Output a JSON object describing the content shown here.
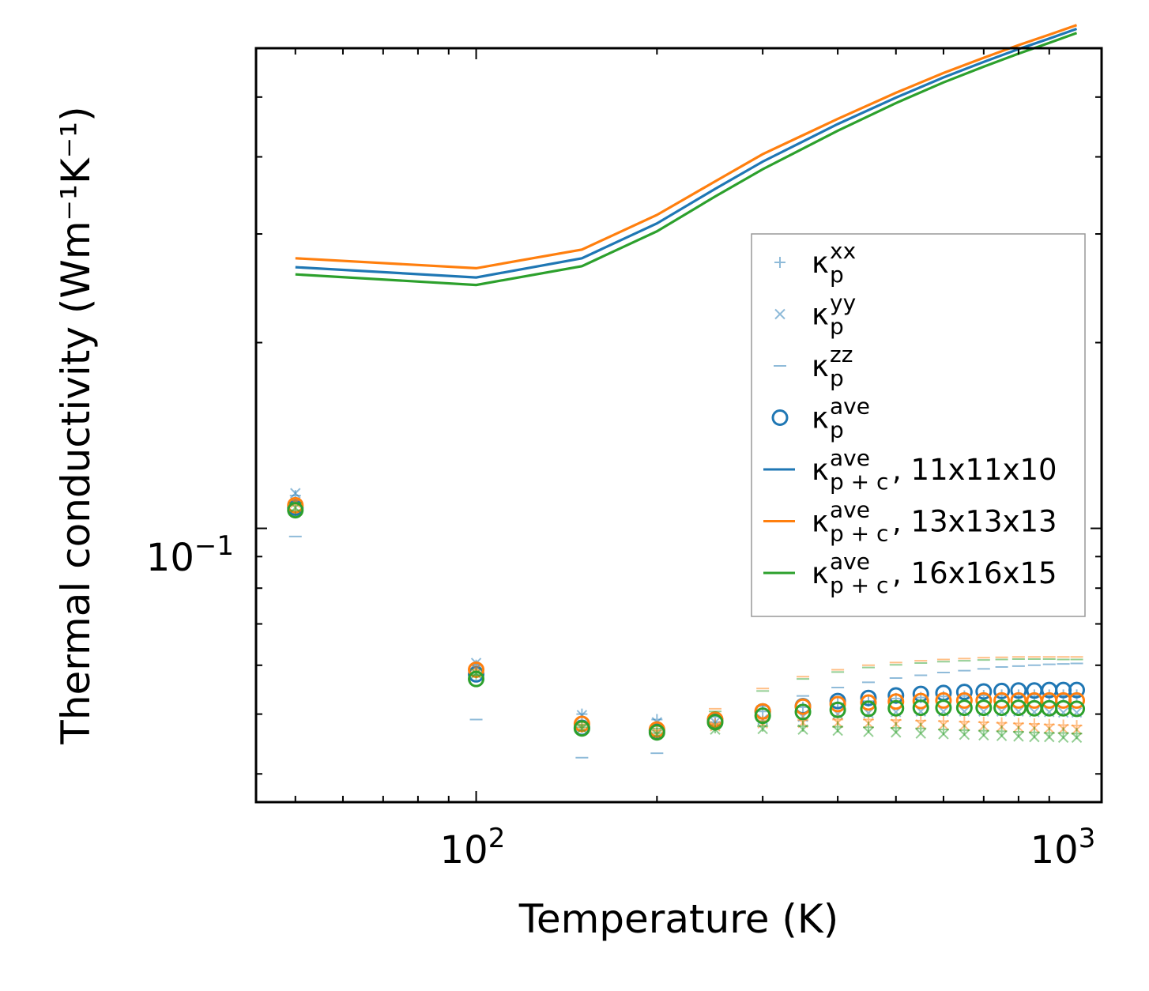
{
  "chart_data": {
    "type": "line",
    "xscale": "log",
    "yscale": "log",
    "xlabel": "Temperature (K)",
    "ylabel": "Thermal conductivity (Wm⁻¹K⁻¹)",
    "xlim": [
      43,
      1100
    ],
    "ylim": [
      0.036,
      0.6
    ],
    "xticks": [
      {
        "value": 100,
        "base": "10",
        "exp": "2"
      },
      {
        "value": 1000,
        "base": "10",
        "exp": "3"
      }
    ],
    "yticks": [
      {
        "value": 0.1,
        "base": "10",
        "exp": "−1"
      }
    ],
    "colors": {
      "blue": "#1f77b4",
      "orange": "#ff7f0e",
      "green": "#2ca02c"
    },
    "x": [
      50,
      100,
      150,
      200,
      250,
      300,
      350,
      400,
      450,
      500,
      550,
      600,
      650,
      700,
      750,
      800,
      850,
      900,
      950,
      1000
    ],
    "legend": [
      {
        "key": "kxx",
        "base": "κ",
        "sup": "xx",
        "sub": "p",
        "suffix": "",
        "marker": "plus",
        "color": "blue"
      },
      {
        "key": "kyy",
        "base": "κ",
        "sup": "yy",
        "sub": "p",
        "suffix": "",
        "marker": "x",
        "color": "blue"
      },
      {
        "key": "kzz",
        "base": "κ",
        "sup": "zz",
        "sub": "p",
        "suffix": "",
        "marker": "dash",
        "color": "blue"
      },
      {
        "key": "kave",
        "base": "κ",
        "sup": "ave",
        "sub": "p",
        "suffix": "",
        "marker": "circle",
        "color": "blue"
      },
      {
        "key": "line1",
        "base": "κ",
        "sup": "ave",
        "sub": "p + c",
        "suffix": ", 11x11x10",
        "marker": "line",
        "color": "blue"
      },
      {
        "key": "line2",
        "base": "κ",
        "sup": "ave",
        "sub": "p + c",
        "suffix": ", 13x13x13",
        "marker": "line",
        "color": "orange"
      },
      {
        "key": "line3",
        "base": "κ",
        "sup": "ave",
        "sub": "p + c",
        "suffix": ", 16x16x15",
        "marker": "line",
        "color": "green"
      }
    ],
    "lines": [
      {
        "name": "κ_p+c ave, 11x11x10",
        "color": "blue",
        "x": [
          50,
          100,
          150,
          200,
          250,
          300,
          400,
          500,
          600,
          700,
          800,
          900,
          1000
        ],
        "values": [
          0.265,
          0.255,
          0.274,
          0.312,
          0.355,
          0.393,
          0.452,
          0.499,
          0.538,
          0.57,
          0.598,
          0.622,
          0.645
        ]
      },
      {
        "name": "κ_p+c ave, 13x13x13",
        "color": "orange",
        "x": [
          50,
          100,
          150,
          200,
          250,
          300,
          400,
          500,
          600,
          700,
          800,
          900,
          1000
        ],
        "values": [
          0.274,
          0.264,
          0.283,
          0.322,
          0.365,
          0.404,
          0.461,
          0.508,
          0.547,
          0.579,
          0.607,
          0.631,
          0.654
        ]
      },
      {
        "name": "κ_p+c ave, 16x16x15",
        "color": "green",
        "x": [
          50,
          100,
          150,
          200,
          250,
          300,
          400,
          500,
          600,
          700,
          800,
          900,
          1000
        ],
        "values": [
          0.258,
          0.248,
          0.266,
          0.303,
          0.345,
          0.382,
          0.441,
          0.489,
          0.528,
          0.56,
          0.588,
          0.612,
          0.635
        ]
      }
    ],
    "scatter": [
      {
        "name": "κ_p xx, 11x11x10",
        "marker": "plus",
        "color": "blue",
        "values": [
          0.113,
          0.06,
          0.05,
          0.049,
          0.0495,
          0.0505,
          0.0513,
          0.052,
          0.0525,
          0.053,
          0.0532,
          0.0534,
          0.0535,
          0.0536,
          0.0537,
          0.0537,
          0.0537,
          0.0537,
          0.0537,
          0.0537
        ]
      },
      {
        "name": "κ_p yy, 11x11x10",
        "marker": "x",
        "color": "blue",
        "values": [
          0.114,
          0.0605,
          0.0498,
          0.0485,
          0.0485,
          0.049,
          0.0495,
          0.05,
          0.0502,
          0.0504,
          0.0505,
          0.0505,
          0.0505,
          0.0505,
          0.0505,
          0.0505,
          0.0504,
          0.0504,
          0.0503,
          0.0503
        ]
      },
      {
        "name": "κ_p zz, 11x11x10",
        "marker": "dash",
        "color": "blue",
        "values": [
          0.097,
          0.049,
          0.0425,
          0.0432,
          0.0485,
          0.0515,
          0.0535,
          0.0552,
          0.0563,
          0.0572,
          0.0578,
          0.0584,
          0.0588,
          0.0592,
          0.0596,
          0.0598,
          0.06,
          0.0602,
          0.0603,
          0.0604
        ]
      },
      {
        "name": "κ_p ave, 11x11x10",
        "marker": "circle",
        "color": "blue",
        "values": [
          0.108,
          0.058,
          0.0475,
          0.047,
          0.0489,
          0.0505,
          0.0515,
          0.0525,
          0.0531,
          0.0536,
          0.0539,
          0.0541,
          0.0543,
          0.0544,
          0.0545,
          0.0546,
          0.0546,
          0.0547,
          0.0547,
          0.0547
        ]
      },
      {
        "name": "κ_p xx, 13x13x13",
        "marker": "plus",
        "color": "orange",
        "values": [
          0.109,
          0.059,
          0.048,
          0.047,
          0.0482,
          0.0487,
          0.0489,
          0.049,
          0.049,
          0.0489,
          0.0488,
          0.0487,
          0.0486,
          0.0485,
          0.0484,
          0.0483,
          0.0482,
          0.0481,
          0.048,
          0.0479
        ]
      },
      {
        "name": "κ_p yy, 13x13x13",
        "marker": "x",
        "color": "orange",
        "values": [
          0.11,
          0.0592,
          0.0478,
          0.0468,
          0.0478,
          0.0483,
          0.0484,
          0.0484,
          0.0483,
          0.0482,
          0.0481,
          0.048,
          0.0479,
          0.0478,
          0.0477,
          0.0476,
          0.0475,
          0.0474,
          0.0473,
          0.0472
        ]
      },
      {
        "name": "κ_p zz, 13x13x13",
        "marker": "dash",
        "color": "orange",
        "values": [
          0.111,
          0.0585,
          0.0485,
          0.0478,
          0.051,
          0.055,
          0.0575,
          0.059,
          0.06,
          0.0606,
          0.061,
          0.0613,
          0.0615,
          0.0617,
          0.0618,
          0.0619,
          0.0619,
          0.0619,
          0.0619,
          0.0619
        ]
      },
      {
        "name": "κ_p ave, 13x13x13",
        "marker": "circle",
        "color": "orange",
        "values": [
          0.109,
          0.059,
          0.0482,
          0.0472,
          0.049,
          0.0505,
          0.0514,
          0.0519,
          0.0522,
          0.0524,
          0.0525,
          0.0526,
          0.0526,
          0.0526,
          0.0526,
          0.0526,
          0.0526,
          0.0526,
          0.0526,
          0.0526
        ]
      },
      {
        "name": "κ_p xx, 16x16x15",
        "marker": "plus",
        "color": "green",
        "values": [
          0.107,
          0.058,
          0.0476,
          0.0466,
          0.0475,
          0.0478,
          0.0478,
          0.0477,
          0.0476,
          0.0475,
          0.0474,
          0.0472,
          0.0471,
          0.047,
          0.0469,
          0.0468,
          0.0467,
          0.0466,
          0.0466,
          0.0465
        ]
      },
      {
        "name": "κ_p yy, 16x16x15",
        "marker": "x",
        "color": "green",
        "values": [
          0.108,
          0.0582,
          0.0474,
          0.0464,
          0.0472,
          0.0473,
          0.0472,
          0.047,
          0.0468,
          0.0467,
          0.0465,
          0.0464,
          0.0463,
          0.0462,
          0.0461,
          0.046,
          0.0459,
          0.0459,
          0.0458,
          0.0458
        ]
      },
      {
        "name": "κ_p zz, 16x16x15",
        "marker": "dash",
        "color": "green",
        "values": [
          0.11,
          0.0578,
          0.048,
          0.0474,
          0.0505,
          0.0545,
          0.057,
          0.0585,
          0.0595,
          0.0601,
          0.0605,
          0.0608,
          0.061,
          0.0612,
          0.0613,
          0.0614,
          0.0614,
          0.0614,
          0.0613,
          0.0613
        ]
      },
      {
        "name": "κ_p ave, 16x16x15",
        "marker": "circle",
        "color": "green",
        "values": [
          0.107,
          0.057,
          0.0474,
          0.0467,
          0.0485,
          0.0497,
          0.0504,
          0.0508,
          0.051,
          0.0511,
          0.0512,
          0.0512,
          0.0512,
          0.0512,
          0.0512,
          0.0512,
          0.0511,
          0.0511,
          0.0511,
          0.051
        ]
      }
    ]
  }
}
